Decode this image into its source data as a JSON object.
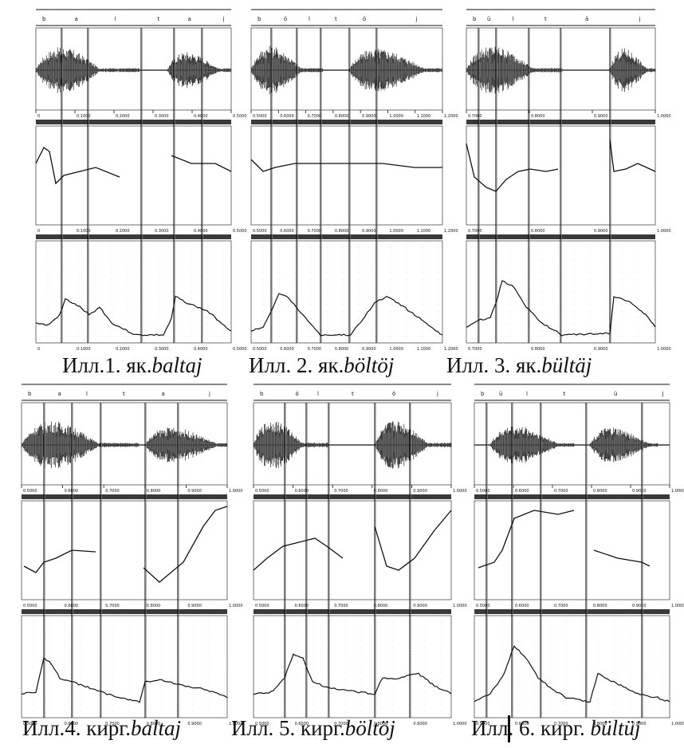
{
  "figures": [
    {
      "id": "1",
      "caption_prefix": "Илл.1. як.",
      "word": "baltaj",
      "segments": [
        "b",
        "a",
        "l",
        "t",
        "a",
        "j"
      ]
    },
    {
      "id": "2",
      "caption_prefix": "Илл. 2. як.",
      "word": "böltöj",
      "segments": [
        "b",
        "ö",
        "l",
        "t",
        "ö",
        "j"
      ]
    },
    {
      "id": "3",
      "caption_prefix": "Илл. 3. як.",
      "word": "bültäj",
      "segments": [
        "b",
        "ü",
        "l",
        "t",
        "ä",
        "j"
      ]
    },
    {
      "id": "4",
      "caption_prefix": "Илл.4. кирг.",
      "word": "baltaj",
      "segments": [
        "b",
        "a",
        "l",
        "t",
        "a",
        "j"
      ]
    },
    {
      "id": "5",
      "caption_prefix": "Илл. 5. кирг.",
      "word": "böltöj",
      "segments": [
        "b",
        "ö",
        "l",
        "t",
        "ö",
        "j"
      ]
    },
    {
      "id": "6",
      "caption_prefix": "Илл. 6. кирг. ",
      "word": "bültüj",
      "segments": [
        "b",
        "ü",
        "l",
        "t",
        "ü",
        "j"
      ]
    }
  ],
  "axis_ticks": {
    "row1_panel1": [
      "0",
      "0.1000",
      "0.2000",
      "0.3000",
      "0.4000",
      "0.5000"
    ],
    "row1_panel2": [
      "0.5000",
      "0.6000",
      "0.7000",
      "0.8000",
      "0.9000",
      "1.0000",
      "1.1000",
      "1.2000"
    ],
    "row1_panel3": [
      "0.7000",
      "0.8000",
      "0.9000",
      "1.0000"
    ],
    "row2": [
      "0.5000",
      "0.6000",
      "0.7000",
      "0.8000",
      "0.9000",
      "1.0000"
    ]
  },
  "colors": {
    "ink": "#111111",
    "grey_band": "#3a3a3a",
    "light_grid": "#bbbbbb",
    "wave_grey": "#7a7a7a"
  }
}
